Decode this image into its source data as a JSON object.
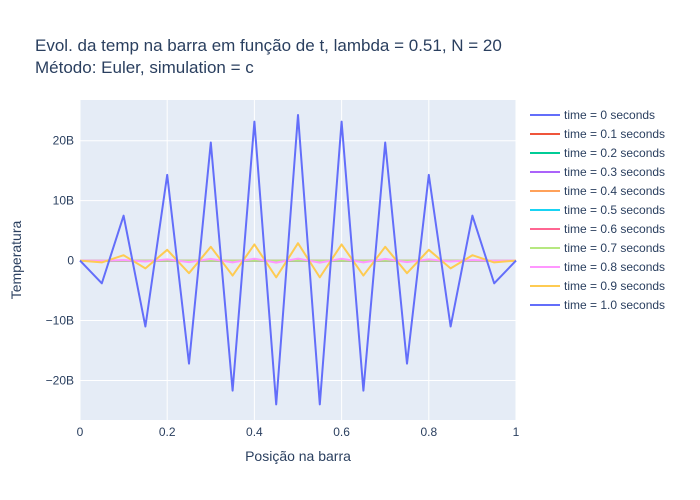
{
  "chart_data": {
    "type": "line",
    "title_line1": "Evol. da temp na barra em função de t, lambda = 0.51, N = 20",
    "title_line2": "Método: Euler, simulation = c",
    "xlabel": "Posição na barra",
    "ylabel": "Temperatura",
    "xlim": [
      0,
      1
    ],
    "ylim": [
      -26600000000,
      26800000000
    ],
    "x_ticks": [
      0,
      0.2,
      0.4,
      0.6,
      0.8,
      1
    ],
    "x_tick_labels": [
      "0",
      "0.2",
      "0.4",
      "0.6",
      "0.8",
      "1"
    ],
    "y_ticks": [
      -20000000000,
      -10000000000,
      0,
      10000000000,
      20000000000
    ],
    "y_tick_labels": [
      "−20B",
      "−10B",
      "0",
      "10B",
      "20B"
    ],
    "grid": true,
    "legend_position": "right",
    "x": [
      0,
      0.05,
      0.1,
      0.15,
      0.2,
      0.25,
      0.3,
      0.35,
      0.4,
      0.45,
      0.5,
      0.55,
      0.6,
      0.65,
      0.7,
      0.75,
      0.8,
      0.85,
      0.9,
      0.95,
      1
    ],
    "series": [
      {
        "name": "time = 0 seconds",
        "color": "#636efa",
        "values": [
          0,
          0,
          0,
          0,
          0,
          0,
          0,
          0,
          0,
          0,
          0,
          0,
          0,
          0,
          0,
          0,
          0,
          0,
          0,
          0,
          0
        ]
      },
      {
        "name": "time = 0.1 seconds",
        "color": "#ef553b",
        "values": [
          0,
          0,
          0,
          0,
          0,
          0,
          0,
          0,
          0,
          0,
          0,
          0,
          0,
          0,
          0,
          0,
          0,
          0,
          0,
          0,
          0
        ]
      },
      {
        "name": "time = 0.2 seconds",
        "color": "#00cc96",
        "values": [
          0,
          0,
          0,
          0,
          0,
          0,
          0,
          0,
          0,
          0,
          0,
          0,
          0,
          0,
          0,
          0,
          0,
          0,
          0,
          0,
          0
        ]
      },
      {
        "name": "time = 0.3 seconds",
        "color": "#ab63fa",
        "values": [
          0,
          0,
          0,
          0,
          0,
          0,
          0,
          0,
          0,
          0,
          0,
          0,
          0,
          0,
          0,
          0,
          0,
          0,
          0,
          0,
          0
        ]
      },
      {
        "name": "time = 0.4 seconds",
        "color": "#ffa15a",
        "values": [
          0,
          0,
          0,
          0,
          0,
          0,
          0,
          0,
          0,
          0,
          0,
          0,
          0,
          0,
          0,
          0,
          0,
          0,
          0,
          0,
          0
        ]
      },
      {
        "name": "time = 0.5 seconds",
        "color": "#19d3f3",
        "values": [
          0,
          0,
          0,
          0,
          0,
          0,
          0,
          0,
          0,
          0,
          0,
          0,
          0,
          0,
          0,
          0,
          0,
          0,
          0,
          0,
          0
        ]
      },
      {
        "name": "time = 0.6 seconds",
        "color": "#ff6692",
        "values": [
          0,
          0,
          0,
          0,
          0,
          0,
          0,
          0,
          0,
          0,
          0,
          0,
          0,
          0,
          0,
          0,
          0,
          0,
          0,
          0,
          0
        ]
      },
      {
        "name": "time = 0.7 seconds",
        "color": "#b6e880",
        "values": [
          0,
          0,
          0,
          0,
          0,
          0,
          0,
          0,
          0,
          0,
          0,
          0,
          0,
          0,
          0,
          0,
          0,
          0,
          0,
          0,
          0
        ]
      },
      {
        "name": "time = 0.8 seconds",
        "color": "#ff97ff",
        "values": [
          0,
          -20000000,
          100000000,
          -150000000,
          200000000,
          -250000000,
          280000000,
          -300000000,
          320000000,
          -330000000,
          340000000,
          -330000000,
          320000000,
          -300000000,
          280000000,
          -250000000,
          200000000,
          -150000000,
          100000000,
          -20000000,
          0
        ]
      },
      {
        "name": "time = 0.9 seconds",
        "color": "#fecb52",
        "values": [
          0,
          -300000000,
          900000000,
          -1300000000,
          1800000000,
          -2100000000,
          2300000000,
          -2500000000,
          2700000000,
          -2800000000,
          2900000000,
          -2800000000,
          2700000000,
          -2500000000,
          2300000000,
          -2100000000,
          1800000000,
          -1300000000,
          900000000,
          -300000000,
          0
        ]
      },
      {
        "name": "time = 1.0 seconds",
        "color": "#636efa",
        "values": [
          0,
          -3800000000,
          7500000000,
          -11000000000,
          14300000000,
          -17200000000,
          19700000000,
          -21700000000,
          23200000000,
          -24000000000,
          24300000000,
          -24000000000,
          23200000000,
          -21700000000,
          19700000000,
          -17200000000,
          14300000000,
          -11000000000,
          7500000000,
          -3800000000,
          0
        ]
      }
    ]
  }
}
